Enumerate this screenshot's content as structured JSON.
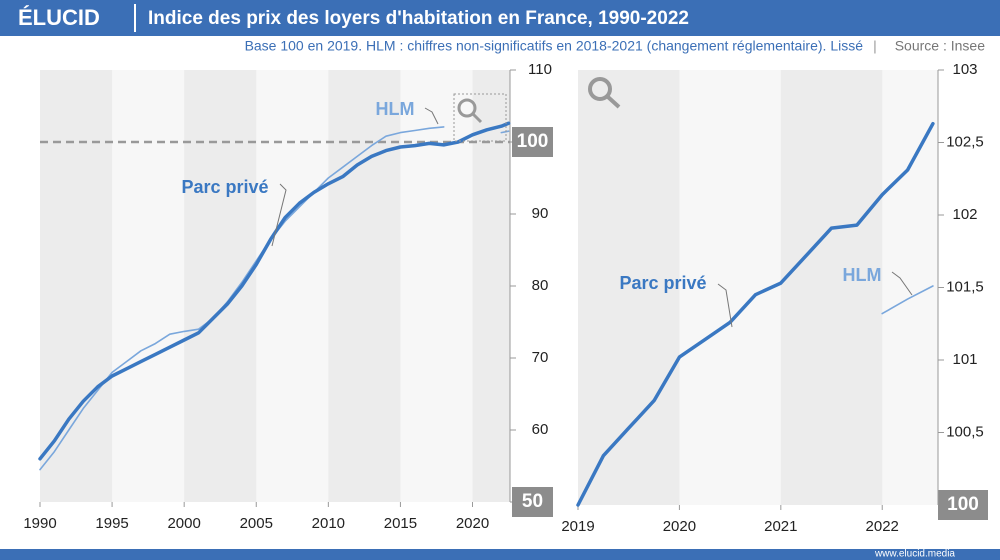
{
  "header": {
    "logo": "ÉLUCID",
    "title": "Indice des prix des loyers d'habitation en France, 1990-2022",
    "subtitle": "Base 100 en 2019. HLM : chiffres non-significatifs en 2018-2021 (changement réglementaire). Lissé",
    "separator": "|",
    "source": "Source : Insee",
    "footer": "www.elucid.media"
  },
  "chart_data": [
    {
      "type": "line",
      "x": [
        1990,
        1991,
        1992,
        1993,
        1994,
        1995,
        1996,
        1997,
        1998,
        1999,
        2000,
        2001,
        2002,
        2003,
        2004,
        2005,
        2006,
        2007,
        2008,
        2009,
        2010,
        2011,
        2012,
        2013,
        2014,
        2015,
        2016,
        2017,
        2018,
        2019,
        2020,
        2021,
        2022,
        2022.5
      ],
      "series": [
        {
          "name": "Parc privé",
          "color": "#3a78c2",
          "values": [
            56,
            58.5,
            61.5,
            64,
            66,
            67.5,
            68.5,
            69.5,
            70.5,
            71.5,
            72.5,
            73.5,
            75.5,
            77.5,
            80,
            83,
            86.5,
            89.5,
            91.5,
            93,
            94.2,
            95.2,
            96.8,
            98,
            98.8,
            99.3,
            99.5,
            99.8,
            99.6,
            100,
            101,
            101.7,
            102.2,
            102.6
          ]
        },
        {
          "name": "HLM",
          "color": "#7aa7dc",
          "values": [
            54.5,
            57,
            60,
            63,
            65.5,
            68,
            69.5,
            71,
            72,
            73.3,
            73.7,
            74,
            75.5,
            77.8,
            80.5,
            83.5,
            86.5,
            89,
            91,
            93,
            95,
            96.5,
            98,
            99.5,
            100.8,
            101.3,
            101.6,
            101.9,
            102.1,
            null,
            null,
            null,
            101.3,
            101.5
          ]
        }
      ],
      "annotations": [
        "HLM",
        "Parc privé"
      ],
      "xlim": [
        1990,
        2022.6
      ],
      "ylim": [
        50,
        110
      ],
      "xticks": [
        1990,
        1995,
        2000,
        2005,
        2010,
        2015,
        2020
      ],
      "yticks": [
        50,
        60,
        70,
        80,
        90,
        100,
        110
      ],
      "reference_line": 100
    },
    {
      "type": "line",
      "x": [
        2019,
        2019.25,
        2019.5,
        2019.75,
        2020,
        2020.25,
        2020.5,
        2020.75,
        2021,
        2021.25,
        2021.5,
        2021.75,
        2022,
        2022.25,
        2022.5
      ],
      "series": [
        {
          "name": "Parc privé",
          "color": "#3a78c2",
          "values": [
            100,
            100.34,
            100.53,
            100.72,
            101.02,
            101.14,
            101.26,
            101.45,
            101.53,
            101.72,
            101.91,
            101.93,
            102.14,
            102.31,
            102.63
          ]
        },
        {
          "name": "HLM",
          "color": "#7aa7dc",
          "values": [
            null,
            null,
            null,
            null,
            null,
            null,
            null,
            null,
            null,
            null,
            null,
            null,
            101.32,
            101.42,
            101.51
          ]
        }
      ],
      "annotations": [
        "Parc privé",
        "HLM"
      ],
      "xlim": [
        2019,
        2022.55
      ],
      "ylim": [
        100,
        103
      ],
      "xticks": [
        2019,
        2020,
        2021,
        2022
      ],
      "yticks": [
        100,
        {
          "value": 100.5,
          "label": "100,5"
        },
        101,
        {
          "value": 101.5,
          "label": "101,5"
        },
        102,
        {
          "value": 102.5,
          "label": "102,5"
        },
        103
      ]
    }
  ]
}
